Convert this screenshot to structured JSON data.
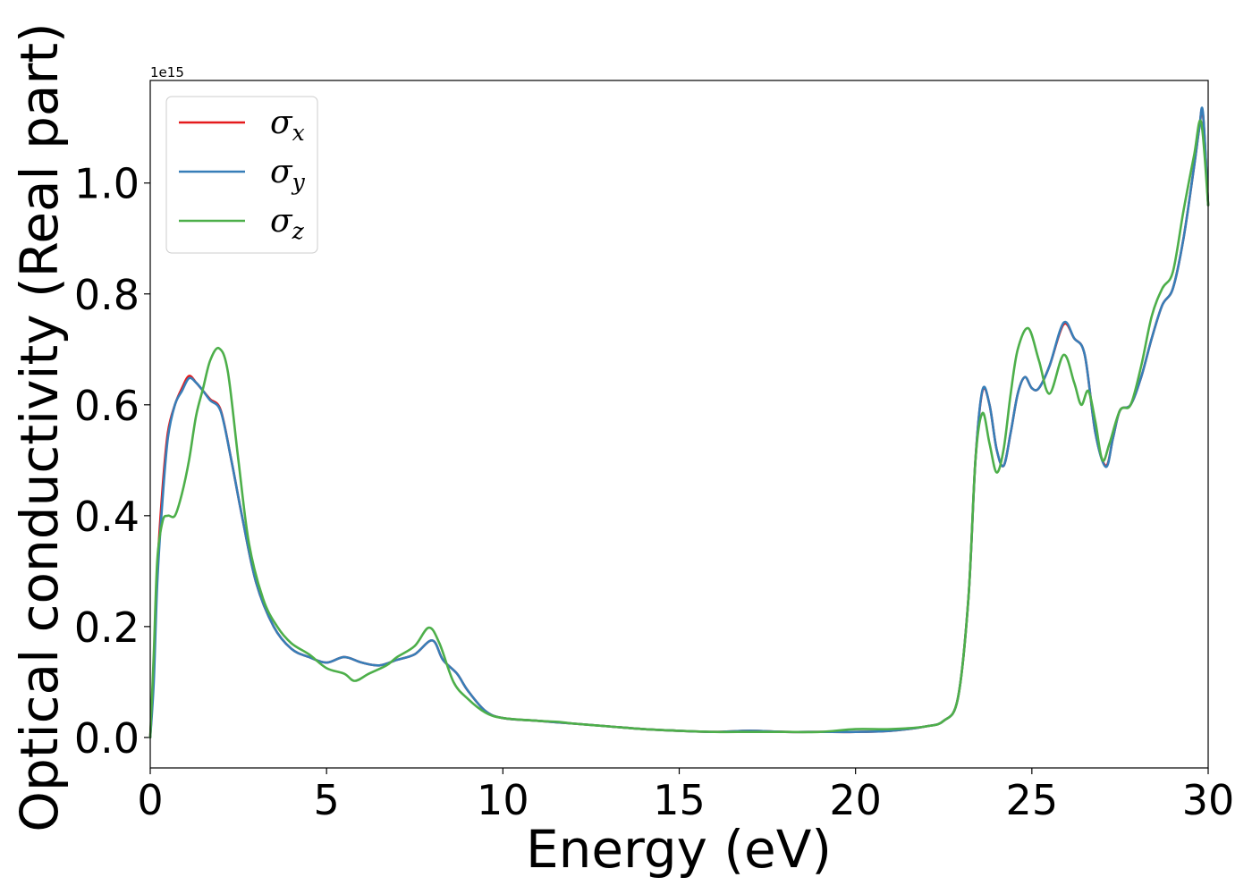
{
  "chart_data": {
    "type": "line",
    "xlabel": "Energy (eV)",
    "ylabel": "Optical conductivity (Real part)",
    "y_offset_label": "1e15",
    "xlim": [
      0,
      30
    ],
    "ylim": [
      -0.055,
      1.185
    ],
    "xticks": [
      0,
      5,
      10,
      15,
      20,
      25,
      30
    ],
    "xtick_labels": [
      "0",
      "5",
      "10",
      "15",
      "20",
      "25",
      "30"
    ],
    "yticks": [
      0.0,
      0.2,
      0.4,
      0.6,
      0.8,
      1.0
    ],
    "ytick_labels": [
      "0.0",
      "0.2",
      "0.4",
      "0.6",
      "0.8",
      "1.0"
    ],
    "grid": false,
    "legend_position": "upper-left",
    "series": [
      {
        "name": "σx",
        "symbol": "σ",
        "subscript": "x",
        "color": "#e41a1c",
        "x": [
          0,
          0.1,
          0.2,
          0.35,
          0.5,
          0.7,
          0.9,
          1.1,
          1.3,
          1.5,
          1.7,
          2.0,
          2.3,
          2.6,
          3.0,
          3.5,
          4.0,
          4.5,
          5.0,
          5.5,
          6.0,
          6.5,
          7.0,
          7.5,
          8.0,
          8.3,
          8.7,
          9.0,
          9.5,
          10,
          11,
          12,
          13,
          14,
          15,
          16,
          17,
          18,
          19,
          20,
          21,
          22,
          22.5,
          22.9,
          23.2,
          23.4,
          23.6,
          23.8,
          24.0,
          24.2,
          24.4,
          24.6,
          24.8,
          25.0,
          25.2,
          25.5,
          25.9,
          26.2,
          26.5,
          26.8,
          27.1,
          27.3,
          27.5,
          27.8,
          28.1,
          28.4,
          28.7,
          29.0,
          29.3,
          29.6,
          29.75,
          29.85,
          30.0
        ],
        "values": [
          0.0,
          0.12,
          0.3,
          0.45,
          0.55,
          0.6,
          0.63,
          0.652,
          0.64,
          0.625,
          0.61,
          0.59,
          0.5,
          0.4,
          0.28,
          0.2,
          0.16,
          0.145,
          0.135,
          0.145,
          0.135,
          0.13,
          0.14,
          0.15,
          0.175,
          0.14,
          0.115,
          0.085,
          0.048,
          0.035,
          0.03,
          0.025,
          0.02,
          0.015,
          0.012,
          0.01,
          0.012,
          0.01,
          0.01,
          0.01,
          0.012,
          0.02,
          0.03,
          0.07,
          0.25,
          0.5,
          0.625,
          0.6,
          0.52,
          0.49,
          0.55,
          0.62,
          0.65,
          0.63,
          0.63,
          0.67,
          0.745,
          0.72,
          0.69,
          0.55,
          0.49,
          0.54,
          0.59,
          0.6,
          0.65,
          0.72,
          0.78,
          0.81,
          0.9,
          1.03,
          1.1,
          1.125,
          0.96
        ]
      },
      {
        "name": "σy",
        "symbol": "σ",
        "subscript": "y",
        "color": "#377eb8",
        "x": [
          0,
          0.1,
          0.2,
          0.35,
          0.5,
          0.7,
          0.9,
          1.1,
          1.3,
          1.5,
          1.7,
          2.0,
          2.3,
          2.6,
          3.0,
          3.5,
          4.0,
          4.5,
          5.0,
          5.5,
          6.0,
          6.5,
          7.0,
          7.5,
          8.0,
          8.3,
          8.7,
          9.0,
          9.5,
          10,
          11,
          12,
          13,
          14,
          15,
          16,
          17,
          18,
          19,
          20,
          21,
          22,
          22.5,
          22.9,
          23.2,
          23.4,
          23.6,
          23.8,
          24.0,
          24.2,
          24.4,
          24.6,
          24.8,
          25.0,
          25.2,
          25.5,
          25.9,
          26.2,
          26.5,
          26.8,
          27.1,
          27.3,
          27.5,
          27.8,
          28.1,
          28.4,
          28.7,
          29.0,
          29.3,
          29.6,
          29.75,
          29.85,
          30.0
        ],
        "values": [
          0.0,
          0.1,
          0.28,
          0.43,
          0.54,
          0.6,
          0.625,
          0.648,
          0.64,
          0.625,
          0.608,
          0.588,
          0.5,
          0.4,
          0.28,
          0.2,
          0.16,
          0.145,
          0.135,
          0.145,
          0.135,
          0.13,
          0.14,
          0.15,
          0.175,
          0.14,
          0.115,
          0.085,
          0.048,
          0.035,
          0.03,
          0.025,
          0.02,
          0.015,
          0.012,
          0.01,
          0.012,
          0.01,
          0.01,
          0.01,
          0.012,
          0.02,
          0.03,
          0.07,
          0.25,
          0.5,
          0.627,
          0.6,
          0.52,
          0.49,
          0.55,
          0.62,
          0.65,
          0.63,
          0.63,
          0.67,
          0.748,
          0.72,
          0.69,
          0.55,
          0.488,
          0.54,
          0.59,
          0.6,
          0.65,
          0.72,
          0.78,
          0.81,
          0.9,
          1.03,
          1.1,
          1.128,
          0.96
        ]
      },
      {
        "name": "σz",
        "symbol": "σ",
        "subscript": "z",
        "color": "#4daf4a",
        "x": [
          0,
          0.1,
          0.2,
          0.35,
          0.5,
          0.7,
          0.9,
          1.1,
          1.3,
          1.5,
          1.7,
          1.95,
          2.2,
          2.5,
          2.8,
          3.2,
          3.6,
          4.0,
          4.5,
          5.0,
          5.5,
          5.8,
          6.2,
          6.7,
          7.0,
          7.5,
          7.9,
          8.2,
          8.6,
          9.0,
          9.5,
          10,
          11,
          11.6,
          12,
          13,
          14,
          15,
          16,
          17,
          18,
          19,
          20,
          21,
          22,
          22.5,
          22.9,
          23.2,
          23.4,
          23.6,
          23.8,
          24.0,
          24.2,
          24.4,
          24.6,
          24.9,
          25.2,
          25.5,
          25.9,
          26.2,
          26.4,
          26.6,
          26.8,
          27.0,
          27.2,
          27.5,
          27.8,
          28.1,
          28.4,
          28.7,
          29.0,
          29.3,
          29.6,
          29.8,
          30.0
        ],
        "values": [
          0.0,
          0.15,
          0.32,
          0.39,
          0.4,
          0.4,
          0.44,
          0.5,
          0.58,
          0.63,
          0.68,
          0.702,
          0.66,
          0.5,
          0.35,
          0.25,
          0.2,
          0.17,
          0.15,
          0.125,
          0.115,
          0.102,
          0.115,
          0.13,
          0.145,
          0.165,
          0.198,
          0.17,
          0.1,
          0.07,
          0.045,
          0.035,
          0.03,
          0.028,
          0.025,
          0.02,
          0.015,
          0.012,
          0.01,
          0.01,
          0.01,
          0.01,
          0.015,
          0.015,
          0.02,
          0.03,
          0.07,
          0.25,
          0.5,
          0.585,
          0.53,
          0.478,
          0.52,
          0.62,
          0.7,
          0.738,
          0.68,
          0.62,
          0.69,
          0.64,
          0.6,
          0.625,
          0.57,
          0.5,
          0.53,
          0.59,
          0.6,
          0.67,
          0.76,
          0.81,
          0.84,
          0.95,
          1.05,
          1.11,
          0.96
        ]
      }
    ]
  }
}
